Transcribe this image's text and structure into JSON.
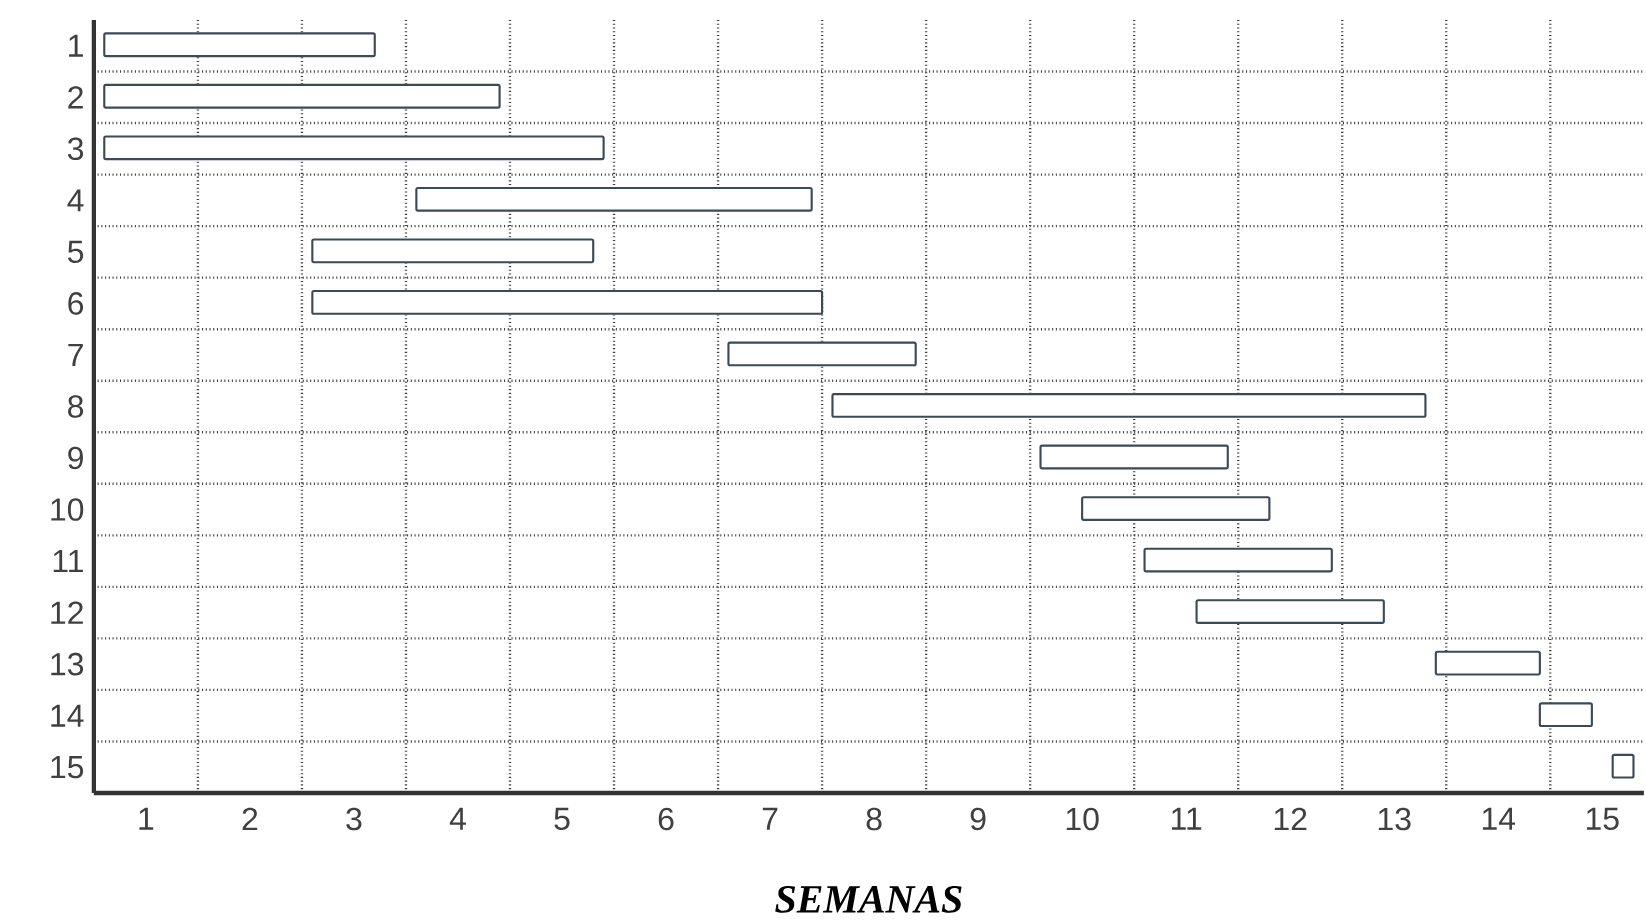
{
  "chart_data": {
    "type": "bar",
    "orientation": "horizontal",
    "xlabel": "SEMANAS",
    "categories": [
      "1",
      "2",
      "3",
      "4",
      "5",
      "6",
      "7",
      "8",
      "9",
      "10",
      "11",
      "12",
      "13",
      "14",
      "15"
    ],
    "base": [
      0.1,
      0.1,
      0.1,
      3.1,
      2.1,
      2.1,
      6.1,
      7.1,
      9.1,
      9.5,
      10.1,
      10.6,
      12.9,
      13.9,
      14.6
    ],
    "values": [
      2.6,
      3.8,
      4.8,
      3.8,
      2.7,
      4.9,
      1.8,
      5.7,
      1.8,
      1.8,
      1.8,
      1.8,
      1.0,
      0.5,
      0.2
    ],
    "color": "#3c4a58",
    "xlim": [
      0,
      14.9
    ],
    "xticks": [
      {
        "value": 0.5,
        "label": "1"
      },
      {
        "value": 1.5,
        "label": "2"
      },
      {
        "value": 2.5,
        "label": "3"
      },
      {
        "value": 3.5,
        "label": "4"
      },
      {
        "value": 4.5,
        "label": "5"
      },
      {
        "value": 5.5,
        "label": "6"
      },
      {
        "value": 6.5,
        "label": "7"
      },
      {
        "value": 7.5,
        "label": "8"
      },
      {
        "value": 8.5,
        "label": "9"
      },
      {
        "value": 9.5,
        "label": "10"
      },
      {
        "value": 10.5,
        "label": "11"
      },
      {
        "value": 11.5,
        "label": "12"
      },
      {
        "value": 12.5,
        "label": "13"
      },
      {
        "value": 13.5,
        "label": "14"
      },
      {
        "value": 14.5,
        "label": "15"
      },
      {
        "value": 1,
        "label": null
      },
      {
        "value": 2,
        "label": null
      },
      {
        "value": 3,
        "label": null
      },
      {
        "value": 4,
        "label": null
      },
      {
        "value": 5,
        "label": null
      },
      {
        "value": 6,
        "label": null
      },
      {
        "value": 7,
        "label": null
      },
      {
        "value": 8,
        "label": null
      },
      {
        "value": 9,
        "label": null
      },
      {
        "value": 10,
        "label": null
      },
      {
        "value": 11,
        "label": null
      },
      {
        "value": 12,
        "label": null
      },
      {
        "value": 13,
        "label": null
      },
      {
        "value": 14,
        "label": null
      }
    ],
    "grid": true
  }
}
